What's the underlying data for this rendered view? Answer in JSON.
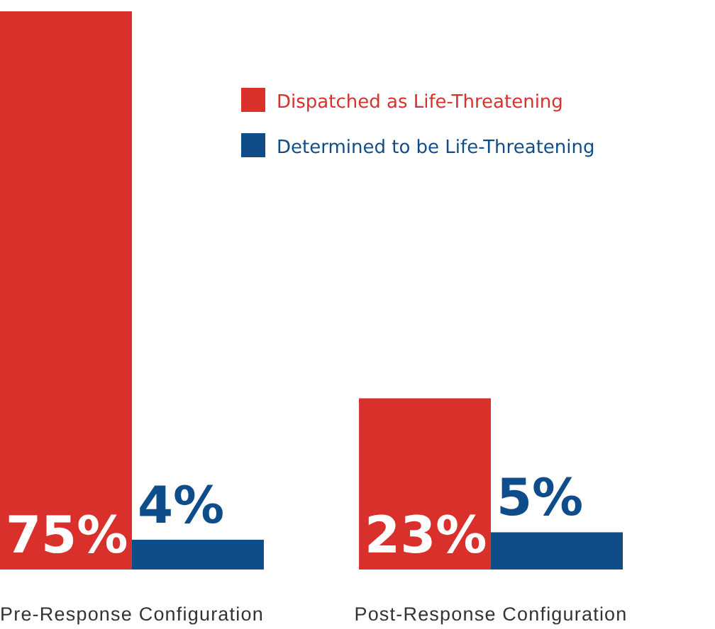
{
  "chart_data": {
    "type": "bar",
    "categories": [
      "Pre-Response Configuration",
      "Post-Response Configuration"
    ],
    "series": [
      {
        "name": "Dispatched as Life-Threatening",
        "color": "#d9302b",
        "values": [
          75,
          23
        ],
        "value_labels": [
          "75%",
          "23%"
        ]
      },
      {
        "name": "Determined to be Life-Threatening",
        "color": "#0f4d8a",
        "values": [
          4,
          5
        ],
        "value_labels": [
          "4%",
          "5%"
        ]
      }
    ],
    "legend": "top right",
    "grid": false
  }
}
